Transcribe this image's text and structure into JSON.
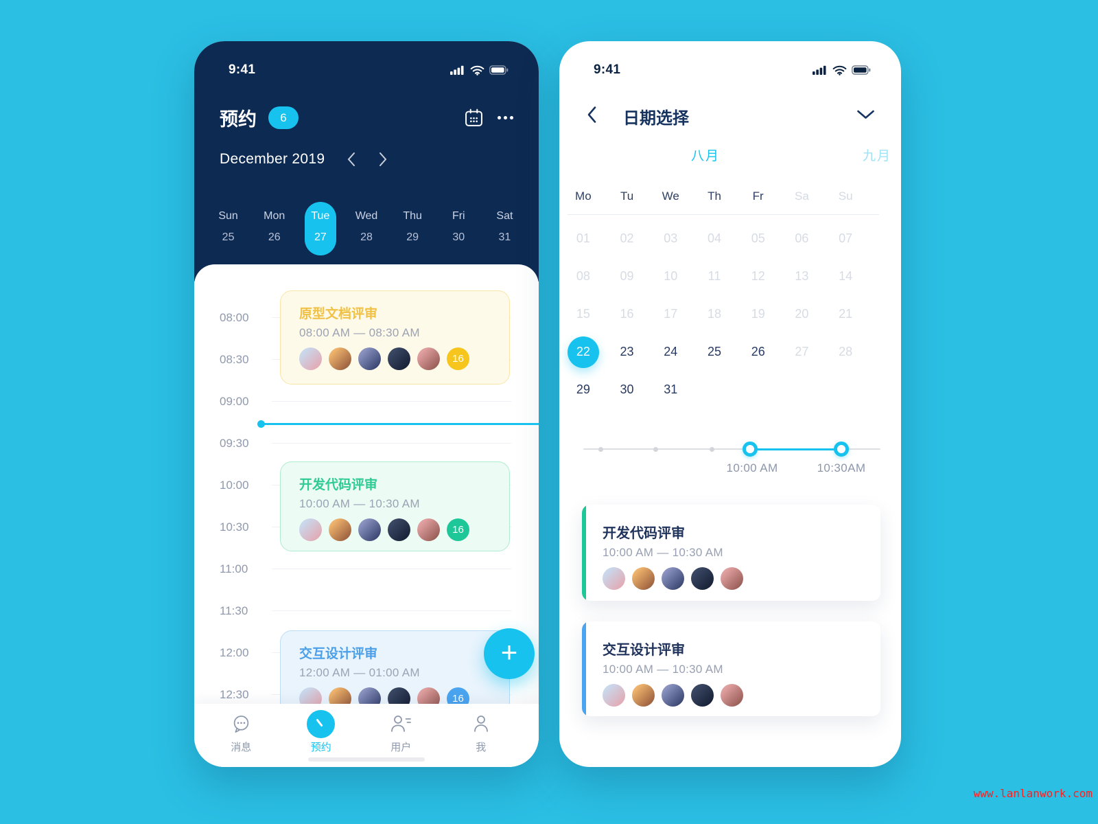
{
  "watermark": "www.lanlanwork.com",
  "colors": {
    "page-bg": "#2bbfe4",
    "navy": "#0d2a52",
    "accent": "#17c3ee",
    "line": "#eef0f5",
    "event-yellow-bg": "#fefae9",
    "event-yellow-border": "#f8e6a6",
    "event-yellow-title": "#f0c145",
    "event-yellow-badge": "#f6c51e",
    "event-green-bg": "#ecfbf4",
    "event-green-border": "#aeeccf",
    "event-green-title": "#2fcb94",
    "event-green-badge": "#1ec797",
    "event-blue-bg": "#eaf4fd",
    "event-blue-border": "#bcdcf7",
    "event-blue-title": "#4b9fe8",
    "event-blue-badge": "#4aa4ef"
  },
  "avatars": [
    {
      "from": "#c9d8ec",
      "to": "#e8a0a8"
    },
    {
      "from": "#eeb36c",
      "to": "#8a4f35"
    },
    {
      "from": "#8a93c0",
      "to": "#2a3560"
    },
    {
      "from": "#3a4763",
      "to": "#10192e"
    },
    {
      "from": "#e0a0a0",
      "to": "#8a4f48"
    }
  ],
  "left_phone": {
    "status_time": "9:41",
    "header": {
      "title": "预约",
      "badge": "6"
    },
    "month_nav": {
      "label": "December 2019"
    },
    "week_days": [
      {
        "day": "Sun",
        "date": "25",
        "state": "normal"
      },
      {
        "day": "Mon",
        "date": "26",
        "state": "normal"
      },
      {
        "day": "Tue",
        "date": "27",
        "state": "selected"
      },
      {
        "day": "Wed",
        "date": "28",
        "state": "normal"
      },
      {
        "day": "Thu",
        "date": "29",
        "state": "normal"
      },
      {
        "day": "Fri",
        "date": "30",
        "state": "normal"
      },
      {
        "day": "Sat",
        "date": "31",
        "state": "normal"
      }
    ],
    "timeline_times": [
      "08:00",
      "08:30",
      "09:00",
      "09:30",
      "10:00",
      "10:30",
      "11:00",
      "11:30",
      "12:00",
      "12:30"
    ],
    "events": [
      {
        "title": "原型文档评审",
        "time": "08:00 AM — 08:30 AM",
        "badge": "16",
        "accent": "yellow"
      },
      {
        "title": "开发代码评审",
        "time": "10:00 AM — 10:30 AM",
        "badge": "16",
        "accent": "green"
      },
      {
        "title": "交互设计评审",
        "time": "12:00 AM — 01:00 AM",
        "badge": "16",
        "accent": "blue"
      }
    ],
    "fab_label": "+",
    "tabbar": [
      {
        "label": "消息",
        "state": "normal"
      },
      {
        "label": "预约",
        "state": "active"
      },
      {
        "label": "用户",
        "state": "normal"
      },
      {
        "label": "我",
        "state": "normal"
      }
    ]
  },
  "right_phone": {
    "status_time": "9:41",
    "header": {
      "title": "日期选择"
    },
    "months": [
      {
        "label": "八月",
        "state": "active"
      },
      {
        "label": "九月",
        "state": "upcoming"
      }
    ],
    "weekdays": [
      {
        "label": "Mo",
        "state": "normal"
      },
      {
        "label": "Tu",
        "state": "normal"
      },
      {
        "label": "We",
        "state": "normal"
      },
      {
        "label": "Th",
        "state": "normal"
      },
      {
        "label": "Fr",
        "state": "normal"
      },
      {
        "label": "Sa",
        "state": "dim"
      },
      {
        "label": "Su",
        "state": "dim"
      }
    ],
    "calendar_days": [
      {
        "label": "01",
        "state": "dim"
      },
      {
        "label": "02",
        "state": "dim"
      },
      {
        "label": "03",
        "state": "dim"
      },
      {
        "label": "04",
        "state": "dim"
      },
      {
        "label": "05",
        "state": "dim"
      },
      {
        "label": "06",
        "state": "dim"
      },
      {
        "label": "07",
        "state": "dim"
      },
      {
        "label": "08",
        "state": "dim"
      },
      {
        "label": "09",
        "state": "dim"
      },
      {
        "label": "10",
        "state": "dim"
      },
      {
        "label": "11",
        "state": "dim"
      },
      {
        "label": "12",
        "state": "dim"
      },
      {
        "label": "13",
        "state": "dim"
      },
      {
        "label": "14",
        "state": "dim"
      },
      {
        "label": "15",
        "state": "dim"
      },
      {
        "label": "16",
        "state": "dim"
      },
      {
        "label": "17",
        "state": "dim"
      },
      {
        "label": "18",
        "state": "dim"
      },
      {
        "label": "19",
        "state": "dim"
      },
      {
        "label": "20",
        "state": "dim"
      },
      {
        "label": "21",
        "state": "dim"
      },
      {
        "label": "22",
        "state": "selected"
      },
      {
        "label": "23",
        "state": "normal"
      },
      {
        "label": "24",
        "state": "normal"
      },
      {
        "label": "25",
        "state": "normal"
      },
      {
        "label": "26",
        "state": "normal"
      },
      {
        "label": "27",
        "state": "dim"
      },
      {
        "label": "28",
        "state": "dim"
      },
      {
        "label": "29",
        "state": "normal"
      },
      {
        "label": "30",
        "state": "normal"
      },
      {
        "label": "31",
        "state": "normal"
      }
    ],
    "slider": {
      "start_label": "10:00 AM",
      "end_label": "10:30AM"
    },
    "cards": [
      {
        "title": "开发代码评审",
        "time": "10:00 AM — 10:30 AM",
        "accent": "green"
      },
      {
        "title": "交互设计评审",
        "time": "10:00 AM — 10:30 AM",
        "accent": "blue"
      }
    ]
  }
}
